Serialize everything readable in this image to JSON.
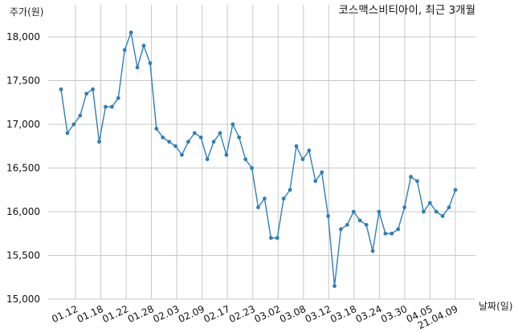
{
  "chart_data": {
    "type": "line",
    "title": "코스맥스비티아이, 최근 3개월",
    "ylabel": "주가(원)",
    "xlabel": "날짜(일)",
    "ylim": [
      15000,
      18000
    ],
    "yticks": [
      15000,
      15500,
      16000,
      16500,
      17000,
      17500,
      18000
    ],
    "ytick_labels": [
      "15,000",
      "15,500",
      "16,000",
      "16,500",
      "17,000",
      "17,500",
      "18,000"
    ],
    "xtick_labels": [
      "01.12",
      "01.18",
      "01.22",
      "01.28",
      "02.03",
      "02.09",
      "02.17",
      "02.23",
      "03.02",
      "03.08",
      "03.12",
      "03.18",
      "03.24",
      "03.30",
      "04.05",
      "21.04.09"
    ],
    "grid": true,
    "line_color": "#2e7fb8",
    "series": [
      {
        "values": [
          17400,
          16900,
          17000,
          17100,
          17350,
          17400,
          16800,
          17200,
          17200,
          17300,
          17850,
          18050,
          17650,
          17900,
          17700,
          16950,
          16850,
          16800,
          16750,
          16650,
          16800,
          16900,
          16850,
          16600,
          16800,
          16900,
          16650,
          17000,
          16850,
          16600,
          16500,
          16050,
          16150,
          15700,
          15700,
          16150,
          16250,
          16750,
          16600,
          16700,
          16350,
          16450,
          15950,
          15150,
          15800,
          15850,
          16000,
          15900,
          15850,
          15550,
          16000,
          15750,
          15750,
          15800,
          16050,
          16400,
          16350,
          16000,
          16100,
          16000,
          15950,
          16050,
          16250
        ]
      }
    ]
  }
}
